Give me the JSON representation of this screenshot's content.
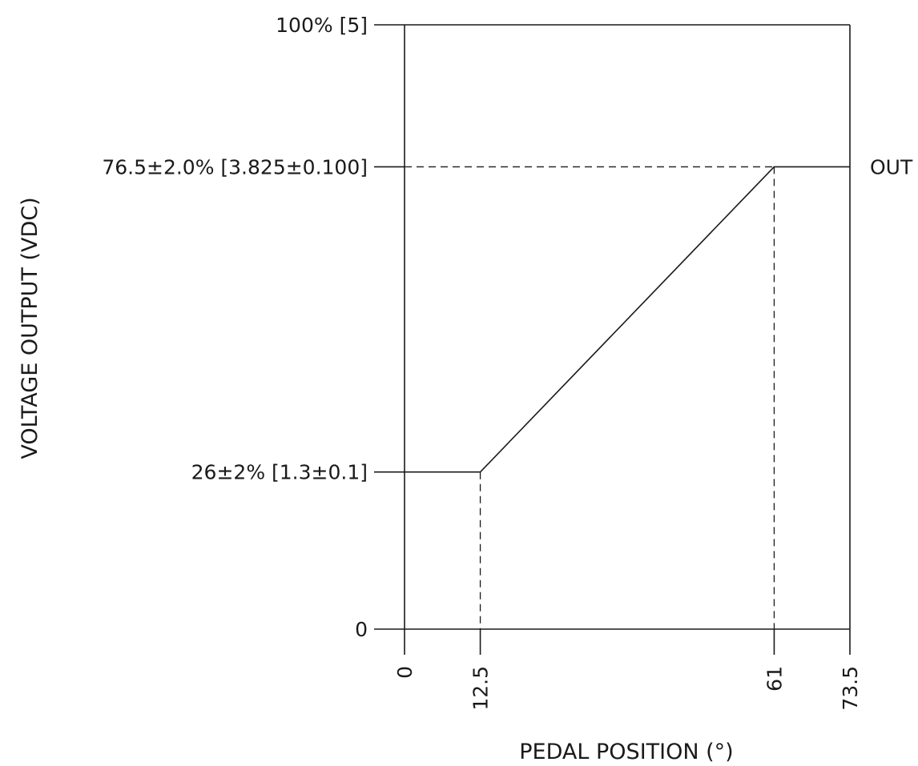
{
  "chart_data": {
    "type": "line",
    "xlabel": "PEDAL POSITION (°)",
    "ylabel": "VOLTAGE OUTPUT (VDC)",
    "xlim": [
      0,
      73.5
    ],
    "ylim": [
      0,
      100
    ],
    "x_ticks": [
      {
        "value": 0,
        "label": "0"
      },
      {
        "value": 12.5,
        "label": "12.5"
      },
      {
        "value": 61,
        "label": "61"
      },
      {
        "value": 73.5,
        "label": "73.5"
      }
    ],
    "y_ticks": [
      {
        "value": 0,
        "label": "0"
      },
      {
        "value": 26,
        "label": "26±2% [1.3±0.1]"
      },
      {
        "value": 76.5,
        "label": "76.5±2.0% [3.825±0.100]"
      },
      {
        "value": 100,
        "label": "100% [5]"
      }
    ],
    "series": [
      {
        "name": "OUT",
        "x": [
          0,
          12.5,
          61,
          73.5
        ],
        "y": [
          26,
          26,
          76.5,
          76.5
        ]
      }
    ],
    "grid": false
  }
}
